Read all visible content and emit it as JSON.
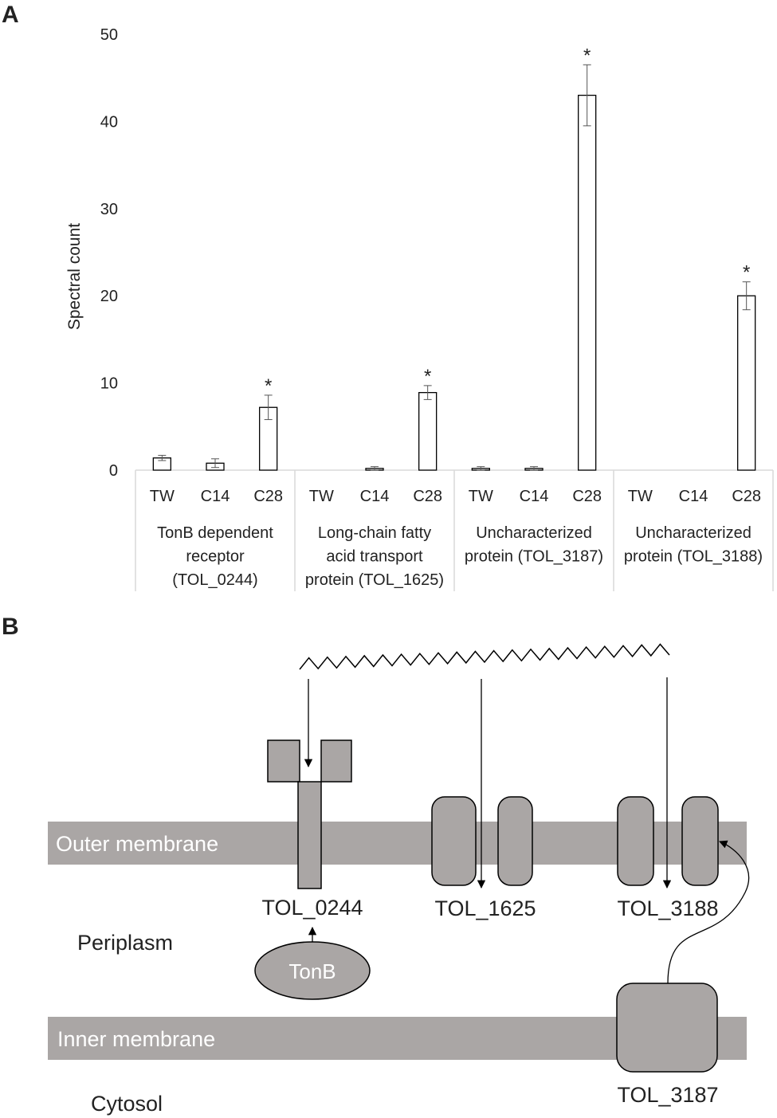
{
  "panels": [
    "A",
    "B"
  ],
  "chart_data": {
    "type": "bar",
    "ylabel": "Spectral count",
    "ylim": [
      0,
      50
    ],
    "yticks": [
      0,
      10,
      20,
      30,
      40,
      50
    ],
    "categories": [
      "TW",
      "C14",
      "C28",
      "TW",
      "C14",
      "C28",
      "TW",
      "C14",
      "C28",
      "TW",
      "C14",
      "C28"
    ],
    "groups": [
      [
        "TonB dependent",
        "receptor",
        "(TOL_0244)"
      ],
      [
        "Long-chain fatty",
        "acid transport",
        "protein (TOL_1625)"
      ],
      [
        "Uncharacterized",
        "protein (TOL_3187)"
      ],
      [
        "Uncharacterized",
        "protein (TOL_3188)"
      ]
    ],
    "values": [
      1.4,
      0.8,
      7.2,
      0,
      0.2,
      8.9,
      0.2,
      0.2,
      43,
      0,
      0,
      20
    ],
    "errors": [
      0.3,
      0.5,
      1.4,
      null,
      0.2,
      0.8,
      0.2,
      0.2,
      3.5,
      null,
      null,
      1.6
    ],
    "annotations": [
      null,
      null,
      "*",
      null,
      null,
      "*",
      null,
      null,
      "*",
      null,
      null,
      "*"
    ],
    "color": "#ffffff",
    "edgecolor": "#000000",
    "grid": false
  },
  "diagram": {
    "outer_membrane": "Outer membrane",
    "inner_membrane": "Inner membrane",
    "periplasm": "Periplasm",
    "cytosol": "Cytosol",
    "tonb": "TonB",
    "proteins": [
      "TOL_0244",
      "TOL_1625",
      "TOL_3188",
      "TOL_3187"
    ]
  }
}
